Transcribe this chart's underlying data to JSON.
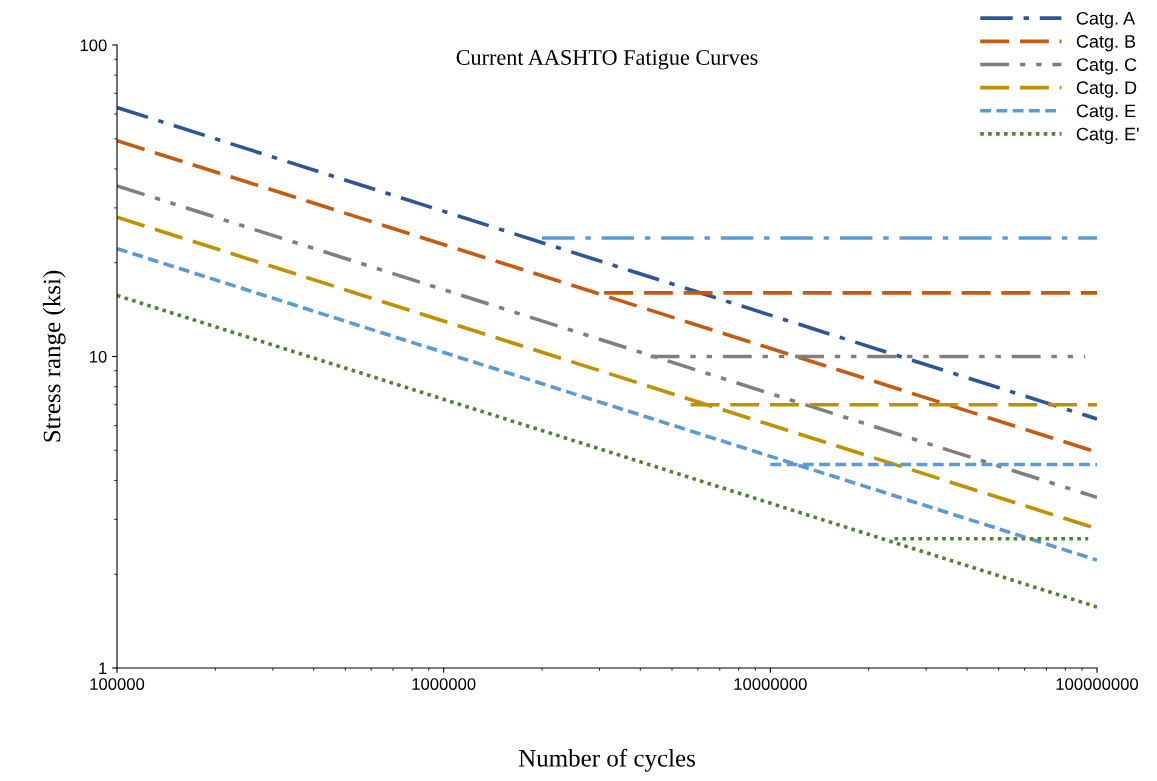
{
  "chart_data": {
    "type": "line",
    "title": "Current AASHTO Fatigue Curves",
    "xlabel": "Number of cycles",
    "ylabel": "Stress range (ksi)",
    "log": "xy",
    "grid": false,
    "legend": "top right",
    "marker": "none",
    "xlim": [
      100000,
      100000000
    ],
    "ylim": [
      1,
      100
    ],
    "xticks": [
      {
        "value": 100000,
        "label": "100000"
      },
      {
        "value": 1000000,
        "label": "1000000"
      },
      {
        "value": 10000000,
        "label": "10000000"
      },
      {
        "value": 100000000,
        "label": "100000000"
      }
    ],
    "yticks": [
      1,
      10,
      100
    ],
    "series": [
      {
        "name": "Catg. A",
        "color": "#2f5597",
        "line_style": "dashdot",
        "x": [
          100000,
          100000000
        ],
        "values": [
          63,
          6.3
        ]
      },
      {
        "name": "Catg. B",
        "color": "#c55a11",
        "line_style": "dashed",
        "x": [
          100000,
          100000000
        ],
        "values": [
          49.3,
          4.93
        ]
      },
      {
        "name": "Catg. C",
        "color": "#7f7f7f",
        "line_style": "dashdotdot",
        "x": [
          100000,
          100000000
        ],
        "values": [
          35.3,
          3.53
        ]
      },
      {
        "name": "Catg. D",
        "color": "#bf9000",
        "line_style": "dashed",
        "x": [
          100000,
          100000000
        ],
        "values": [
          28,
          2.8
        ]
      },
      {
        "name": "Catg. E",
        "color": "#5b9bd5",
        "line_style": "shortdash",
        "x": [
          100000,
          100000000
        ],
        "values": [
          22.2,
          2.22
        ]
      },
      {
        "name": "Catg. E'",
        "color": "#548235",
        "line_style": "dotted",
        "x": [
          100000,
          100000000
        ],
        "values": [
          15.7,
          1.57
        ]
      },
      {
        "color": "#5b9bd5",
        "line_style": "dashdot",
        "x": [
          2000000,
          100000000
        ],
        "values": [
          24,
          24
        ]
      },
      {
        "color": "#c55a11",
        "line_style": "dashed",
        "x": [
          3100000,
          100000000
        ],
        "values": [
          16,
          16
        ]
      },
      {
        "color": "#7f7f7f",
        "line_style": "dashdotdot",
        "x": [
          4300000,
          92000000
        ],
        "values": [
          10,
          10
        ]
      },
      {
        "color": "#bf9000",
        "line_style": "dashed",
        "x": [
          5700000,
          100000000
        ],
        "values": [
          7,
          7
        ]
      },
      {
        "color": "#5b9bd5",
        "line_style": "shortdash",
        "x": [
          10000000,
          100000000
        ],
        "values": [
          4.5,
          4.5
        ]
      },
      {
        "color": "#548235",
        "line_style": "dotted",
        "x": [
          24000000,
          94000000
        ],
        "values": [
          2.6,
          2.6
        ]
      }
    ]
  }
}
